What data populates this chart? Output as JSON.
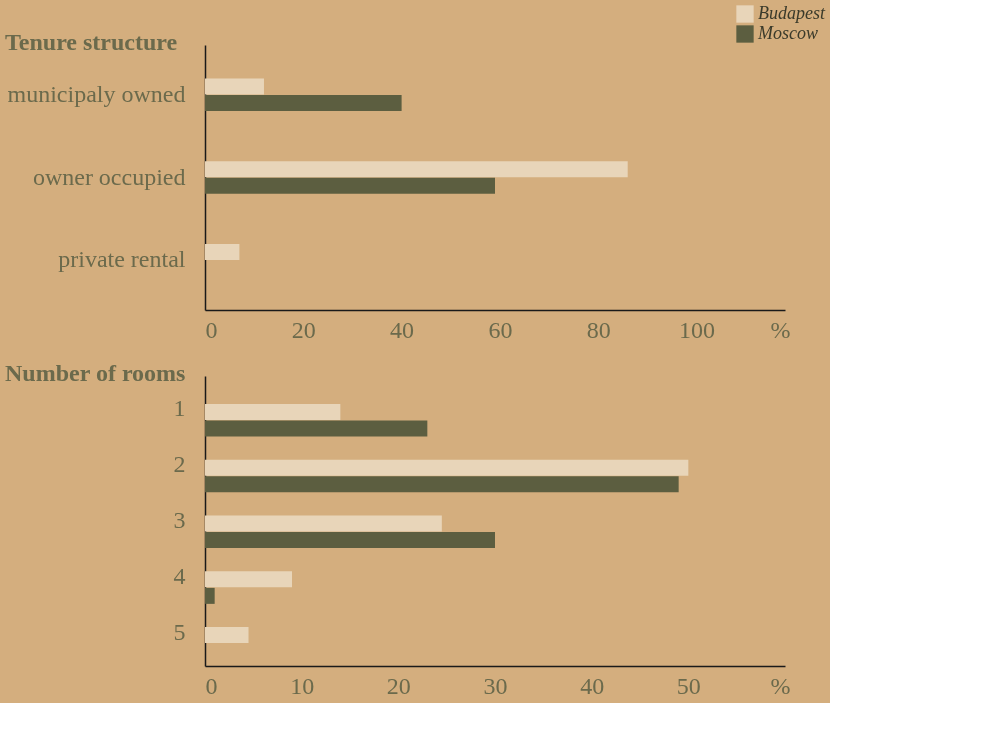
{
  "chart_data": [
    {
      "type": "bar",
      "orientation": "horizontal",
      "title": "Tenure structure",
      "xlabel": "%",
      "categories": [
        "municipaly owned",
        "owner occupied",
        "private rental"
      ],
      "series": [
        {
          "name": "Budapest",
          "color": "#e8d5b9",
          "values": [
            12,
            86,
            7
          ]
        },
        {
          "name": "Moscow",
          "color": "#5c5e40",
          "values": [
            40,
            59,
            null
          ]
        }
      ],
      "xlim": [
        0,
        118
      ],
      "xticks": [
        0,
        20,
        40,
        60,
        80,
        100
      ],
      "grid": false,
      "legend": "top right"
    },
    {
      "type": "bar",
      "orientation": "horizontal",
      "title": "Number of rooms",
      "xlabel": "%",
      "categories": [
        "1",
        "2",
        "3",
        "4",
        "5"
      ],
      "series": [
        {
          "name": "Budapest",
          "color": "#e8d5b9",
          "values": [
            14,
            50,
            24.5,
            9,
            4.5
          ]
        },
        {
          "name": "Moscow",
          "color": "#5c5e40",
          "values": [
            23,
            49,
            30,
            1,
            null
          ]
        }
      ],
      "xlim": [
        0,
        60
      ],
      "xticks": [
        0,
        10,
        20,
        30,
        40,
        50
      ],
      "grid": false,
      "legend": false
    }
  ]
}
